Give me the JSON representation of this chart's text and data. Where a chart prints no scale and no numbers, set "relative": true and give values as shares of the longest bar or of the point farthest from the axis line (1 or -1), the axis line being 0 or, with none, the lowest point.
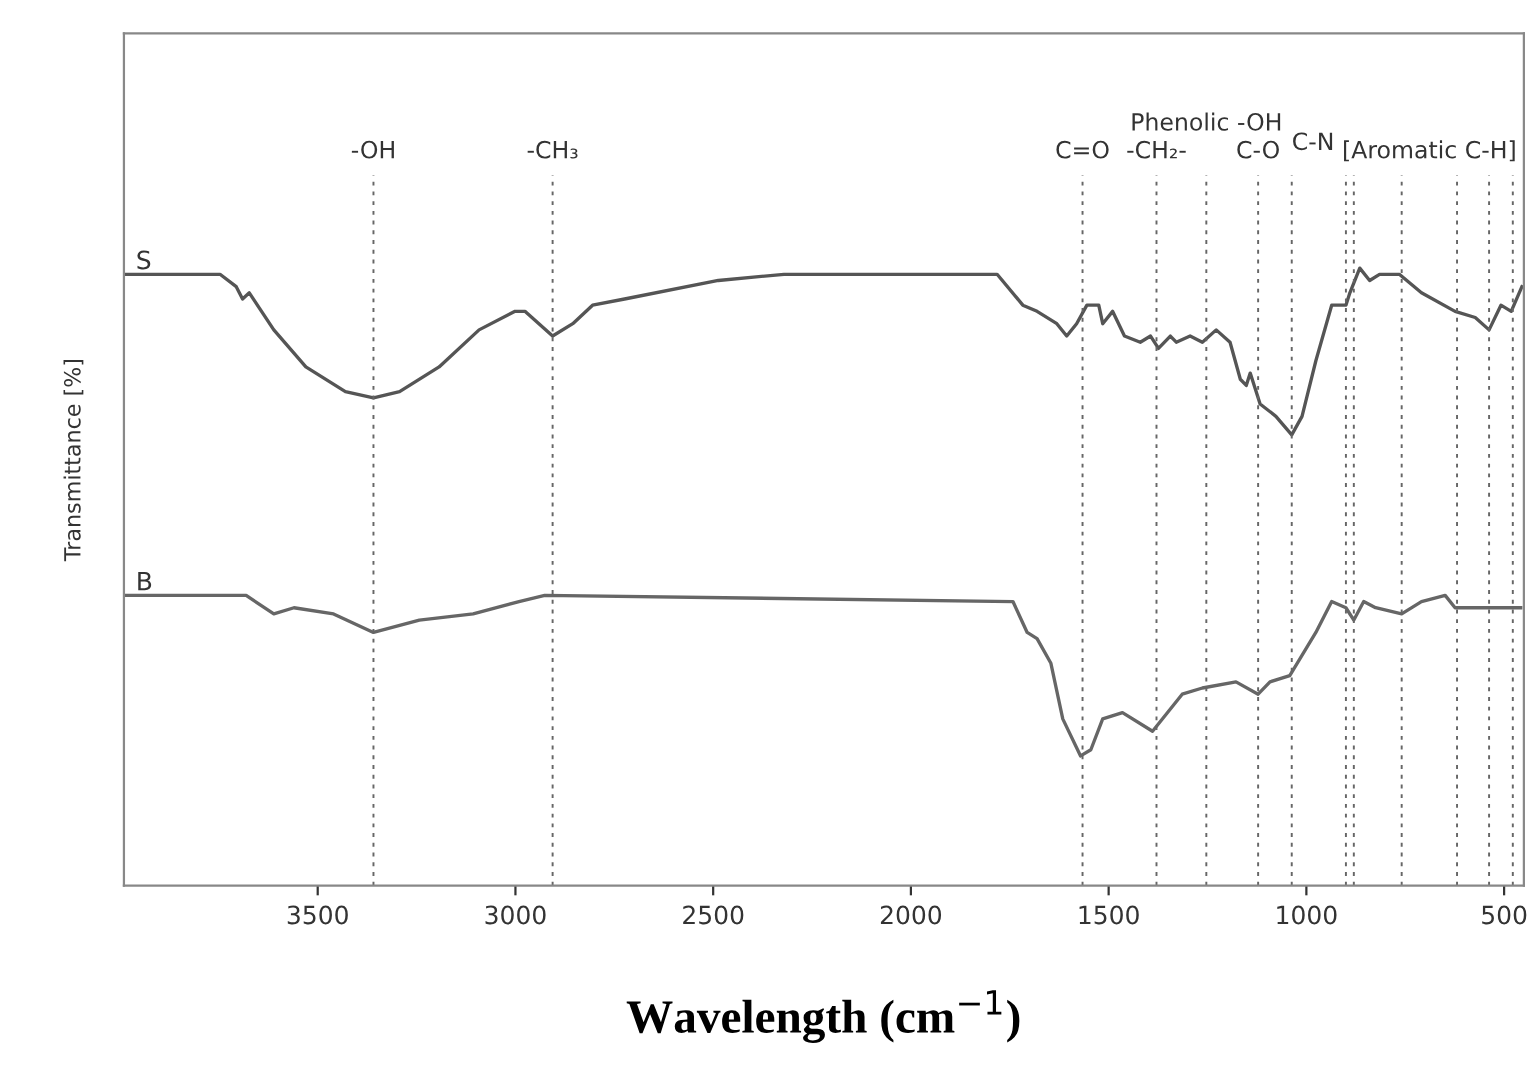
{
  "chart_data": {
    "type": "line",
    "relative": true,
    "xlabel": "Wavelength (cm$^{−1}$)",
    "ylabel": "Transmittance [%]",
    "xlim": [
      3990,
      450
    ],
    "xticks": [
      3500,
      3000,
      2500,
      2000,
      1500,
      1000,
      500
    ],
    "legend": false,
    "grid": false,
    "line_style": "solid",
    "marker": "none",
    "series": [
      {
        "name": "S",
        "color": "#555555",
        "x": [
          3990,
          3747,
          3706,
          3690,
          3673,
          3611,
          3530,
          3430,
          3359,
          3293,
          3193,
          3092,
          3001,
          2976,
          2906,
          2855,
          2805,
          2724,
          2487,
          2321,
          1782,
          1717,
          1681,
          1631,
          1606,
          1581,
          1555,
          1525,
          1515,
          1490,
          1460,
          1420,
          1394,
          1374,
          1344,
          1329,
          1294,
          1263,
          1228,
          1193,
          1167,
          1152,
          1142,
          1117,
          1077,
          1037,
          1011,
          976,
          936,
          900,
          890,
          865,
          840,
          815,
          765,
          709,
          624,
          573,
          538,
          508,
          482,
          455
        ],
        "values": [
          0.99,
          0.99,
          0.97,
          0.95,
          0.96,
          0.9,
          0.84,
          0.8,
          0.79,
          0.8,
          0.84,
          0.9,
          0.93,
          0.93,
          0.89,
          0.91,
          0.94,
          0.95,
          0.98,
          0.99,
          0.99,
          0.94,
          0.93,
          0.91,
          0.89,
          0.91,
          0.94,
          0.94,
          0.91,
          0.93,
          0.89,
          0.88,
          0.89,
          0.87,
          0.89,
          0.88,
          0.89,
          0.88,
          0.9,
          0.88,
          0.82,
          0.81,
          0.83,
          0.78,
          0.76,
          0.73,
          0.76,
          0.85,
          0.94,
          0.94,
          0.96,
          1.0,
          0.98,
          0.99,
          0.99,
          0.96,
          0.93,
          0.92,
          0.9,
          0.94,
          0.93,
          0.97
        ]
      },
      {
        "name": "B",
        "color": "#666666",
        "x": [
          3990,
          3681,
          3611,
          3560,
          3460,
          3359,
          3243,
          3107,
          2991,
          2926,
          1742,
          1706,
          1681,
          1646,
          1616,
          1571,
          1545,
          1515,
          1465,
          1389,
          1314,
          1263,
          1178,
          1122,
          1092,
          1042,
          976,
          936,
          900,
          880,
          855,
          825,
          759,
          709,
          649,
          624,
          573,
          458
        ],
        "values": [
          0.47,
          0.47,
          0.44,
          0.45,
          0.44,
          0.41,
          0.43,
          0.44,
          0.46,
          0.47,
          0.46,
          0.41,
          0.4,
          0.36,
          0.27,
          0.21,
          0.22,
          0.27,
          0.28,
          0.25,
          0.31,
          0.32,
          0.33,
          0.31,
          0.33,
          0.34,
          0.41,
          0.46,
          0.45,
          0.43,
          0.46,
          0.45,
          0.44,
          0.46,
          0.47,
          0.45,
          0.45,
          0.45
        ]
      }
    ],
    "ref_lines": [
      {
        "axis": "x",
        "value": 3359,
        "label": "-OH"
      },
      {
        "axis": "x",
        "value": 2906,
        "label": "-CH₃"
      },
      {
        "axis": "x",
        "value": 1566,
        "label": "C=O"
      },
      {
        "axis": "x",
        "value": 1379,
        "label": "-CH₂-"
      },
      {
        "axis": "x",
        "value": 1253,
        "label": "Phenolic -OH"
      },
      {
        "axis": "x",
        "value": 1122,
        "label": "C-O"
      },
      {
        "axis": "x",
        "value": 1037,
        "label": "C-N"
      },
      {
        "axis": "x",
        "value": 900,
        "label": null
      },
      {
        "axis": "x",
        "value": 880,
        "label": null
      },
      {
        "axis": "x",
        "value": 759,
        "label": null
      },
      {
        "axis": "x",
        "value": 619,
        "label": null
      },
      {
        "axis": "x",
        "value": 538,
        "label": null
      },
      {
        "axis": "x",
        "value": 478,
        "label": null
      }
    ],
    "annotations": [
      "[Aromatic C-H]"
    ]
  }
}
